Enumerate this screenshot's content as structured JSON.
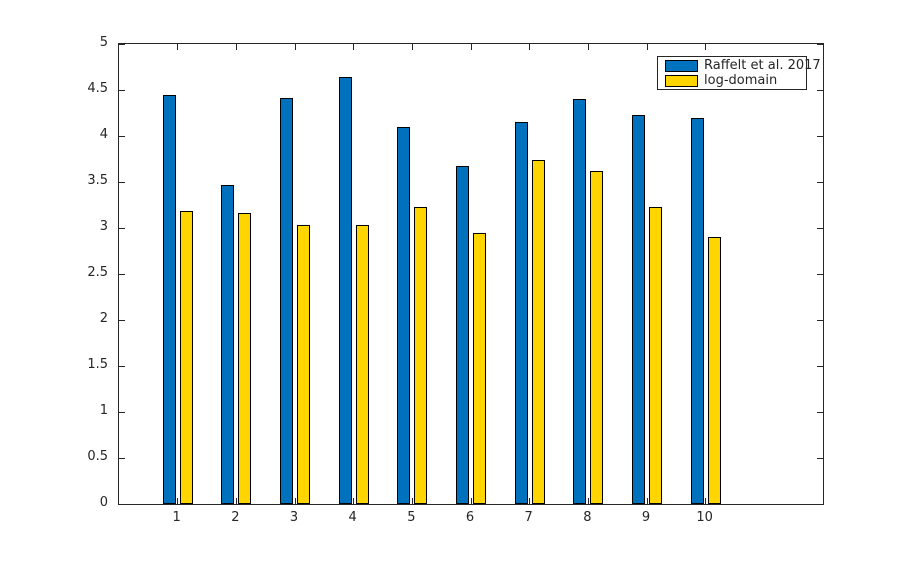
{
  "chart_data": {
    "type": "bar",
    "categories": [
      1,
      2,
      3,
      4,
      5,
      6,
      7,
      8,
      9,
      10
    ],
    "series": [
      {
        "name": "Raffelt et al. 2017",
        "color": "#0072BD",
        "values": [
          4.45,
          3.47,
          4.41,
          4.64,
          4.1,
          3.67,
          4.15,
          4.4,
          4.23,
          4.2
        ]
      },
      {
        "name": "log-domain",
        "color": "#FFD500",
        "values": [
          3.18,
          3.16,
          3.03,
          3.03,
          3.23,
          2.95,
          3.74,
          3.62,
          3.23,
          2.9
        ]
      }
    ],
    "title": "",
    "xlabel": "",
    "ylabel": "",
    "xlim": [
      0,
      12
    ],
    "ylim": [
      0,
      5
    ],
    "xticks": [
      1,
      2,
      3,
      4,
      5,
      6,
      7,
      8,
      9,
      10
    ],
    "yticks": [
      0,
      0.5,
      1,
      1.5,
      2,
      2.5,
      3,
      3.5,
      4,
      4.5,
      5
    ],
    "grid": false,
    "legend_position": "top-right",
    "bar_edge_color": "#000000",
    "axis_color": "#262626"
  }
}
